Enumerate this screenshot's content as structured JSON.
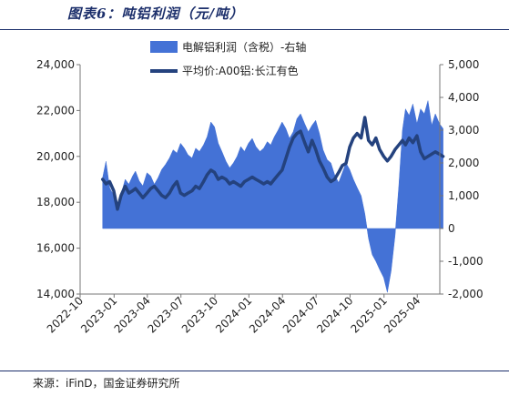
{
  "title": "图表6：吨铝利润（元/吨）",
  "source": "来源：iFinD，国金证券研究所",
  "colors": {
    "area": "#4472d6",
    "line": "#24427e",
    "title": "#1c2f6b"
  },
  "chart_data": {
    "type": "area",
    "legend": {
      "position": "top-center",
      "entries": [
        {
          "key": "profit",
          "label": "电解铝利润（含税）-右轴",
          "style": "area"
        },
        {
          "key": "price",
          "label": "平均价:A00铝:长江有色",
          "style": "line"
        }
      ]
    },
    "x_ticks": [
      "2022-10",
      "2023-01",
      "2023-04",
      "2023-07",
      "2023-10",
      "2024-01",
      "2024-04",
      "2024-07",
      "2024-10",
      "2025-01",
      "2025-04"
    ],
    "x_range": [
      "2022-10",
      "2025-06"
    ],
    "left_axis": {
      "min": 14000,
      "max": 24000,
      "ticks": [
        "14,000",
        "16,000",
        "18,000",
        "20,000",
        "22,000",
        "24,000"
      ]
    },
    "right_axis": {
      "min": -2000,
      "max": 5000,
      "ticks": [
        "-2,000",
        "-1,000",
        "0",
        "1,000",
        "2,000",
        "3,000",
        "4,000",
        "5,000"
      ]
    },
    "grid": false,
    "series": [
      {
        "key": "profit",
        "axis": "right",
        "type": "area",
        "points": [
          [
            "2022-12-01",
            1550
          ],
          [
            "2022-12-10",
            2050
          ],
          [
            "2022-12-20",
            1250
          ],
          [
            "2022-12-31",
            1000
          ],
          [
            "2023-01-10",
            650
          ],
          [
            "2023-01-20",
            1050
          ],
          [
            "2023-01-31",
            1500
          ],
          [
            "2023-02-10",
            1350
          ],
          [
            "2023-02-20",
            1600
          ],
          [
            "2023-02-28",
            1750
          ],
          [
            "2023-03-10",
            1450
          ],
          [
            "2023-03-20",
            1300
          ],
          [
            "2023-03-31",
            1700
          ],
          [
            "2023-04-10",
            1600
          ],
          [
            "2023-04-20",
            1350
          ],
          [
            "2023-04-30",
            1550
          ],
          [
            "2023-05-10",
            1800
          ],
          [
            "2023-05-20",
            1950
          ],
          [
            "2023-05-31",
            2150
          ],
          [
            "2023-06-10",
            2400
          ],
          [
            "2023-06-20",
            2300
          ],
          [
            "2023-06-30",
            2600
          ],
          [
            "2023-07-10",
            2450
          ],
          [
            "2023-07-20",
            2250
          ],
          [
            "2023-07-31",
            2150
          ],
          [
            "2023-08-10",
            2450
          ],
          [
            "2023-08-20",
            2350
          ],
          [
            "2023-08-31",
            2550
          ],
          [
            "2023-09-10",
            2800
          ],
          [
            "2023-09-20",
            3250
          ],
          [
            "2023-09-30",
            3100
          ],
          [
            "2023-10-10",
            2600
          ],
          [
            "2023-10-20",
            2350
          ],
          [
            "2023-10-31",
            2050
          ],
          [
            "2023-11-10",
            1850
          ],
          [
            "2023-11-20",
            2000
          ],
          [
            "2023-11-30",
            2200
          ],
          [
            "2023-12-10",
            2500
          ],
          [
            "2023-12-20",
            2350
          ],
          [
            "2023-12-31",
            2600
          ],
          [
            "2024-01-10",
            2750
          ],
          [
            "2024-01-20",
            2500
          ],
          [
            "2024-01-31",
            2350
          ],
          [
            "2024-02-10",
            2450
          ],
          [
            "2024-02-20",
            2650
          ],
          [
            "2024-02-29",
            2550
          ],
          [
            "2024-03-10",
            2800
          ],
          [
            "2024-03-20",
            3000
          ],
          [
            "2024-03-31",
            3250
          ],
          [
            "2024-04-10",
            3050
          ],
          [
            "2024-04-20",
            2750
          ],
          [
            "2024-04-30",
            2950
          ],
          [
            "2024-05-10",
            3350
          ],
          [
            "2024-05-20",
            3500
          ],
          [
            "2024-05-31",
            3200
          ],
          [
            "2024-06-10",
            2950
          ],
          [
            "2024-06-20",
            3150
          ],
          [
            "2024-06-30",
            3300
          ],
          [
            "2024-07-10",
            2900
          ],
          [
            "2024-07-20",
            2400
          ],
          [
            "2024-07-31",
            2100
          ],
          [
            "2024-08-10",
            2000
          ],
          [
            "2024-08-20",
            1650
          ],
          [
            "2024-08-31",
            1400
          ],
          [
            "2024-09-10",
            1700
          ],
          [
            "2024-09-20",
            2000
          ],
          [
            "2024-09-30",
            1800
          ],
          [
            "2024-10-10",
            1500
          ],
          [
            "2024-10-20",
            1250
          ],
          [
            "2024-10-31",
            1000
          ],
          [
            "2024-11-10",
            450
          ],
          [
            "2024-11-20",
            -300
          ],
          [
            "2024-11-30",
            -800
          ],
          [
            "2024-12-10",
            -1000
          ],
          [
            "2024-12-20",
            -1250
          ],
          [
            "2024-12-31",
            -1500
          ],
          [
            "2025-01-10",
            -1950
          ],
          [
            "2025-01-20",
            -1300
          ],
          [
            "2025-01-31",
            -200
          ],
          [
            "2025-02-10",
            1300
          ],
          [
            "2025-02-20",
            3000
          ],
          [
            "2025-02-28",
            3650
          ],
          [
            "2025-03-10",
            3450
          ],
          [
            "2025-03-20",
            3800
          ],
          [
            "2025-03-31",
            3200
          ],
          [
            "2025-04-10",
            3650
          ],
          [
            "2025-04-20",
            3500
          ],
          [
            "2025-04-30",
            3900
          ],
          [
            "2025-05-10",
            3150
          ],
          [
            "2025-05-20",
            3500
          ],
          [
            "2025-05-31",
            3200
          ],
          [
            "2025-06-10",
            3050
          ]
        ]
      },
      {
        "key": "price",
        "axis": "left",
        "type": "line",
        "points": [
          [
            "2022-12-01",
            19000
          ],
          [
            "2022-12-10",
            18800
          ],
          [
            "2022-12-20",
            18900
          ],
          [
            "2022-12-31",
            18500
          ],
          [
            "2023-01-10",
            17700
          ],
          [
            "2023-01-20",
            18300
          ],
          [
            "2023-01-31",
            18700
          ],
          [
            "2023-02-10",
            18400
          ],
          [
            "2023-02-20",
            18500
          ],
          [
            "2023-02-28",
            18600
          ],
          [
            "2023-03-10",
            18400
          ],
          [
            "2023-03-20",
            18200
          ],
          [
            "2023-03-31",
            18400
          ],
          [
            "2023-04-10",
            18600
          ],
          [
            "2023-04-20",
            18700
          ],
          [
            "2023-04-30",
            18500
          ],
          [
            "2023-05-10",
            18300
          ],
          [
            "2023-05-20",
            18200
          ],
          [
            "2023-05-31",
            18400
          ],
          [
            "2023-06-10",
            18700
          ],
          [
            "2023-06-20",
            18900
          ],
          [
            "2023-06-30",
            18400
          ],
          [
            "2023-07-10",
            18300
          ],
          [
            "2023-07-20",
            18400
          ],
          [
            "2023-07-31",
            18500
          ],
          [
            "2023-08-10",
            18700
          ],
          [
            "2023-08-20",
            18600
          ],
          [
            "2023-08-31",
            18900
          ],
          [
            "2023-09-10",
            19200
          ],
          [
            "2023-09-20",
            19400
          ],
          [
            "2023-09-30",
            19300
          ],
          [
            "2023-10-10",
            19000
          ],
          [
            "2023-10-20",
            19100
          ],
          [
            "2023-10-31",
            19000
          ],
          [
            "2023-11-10",
            18800
          ],
          [
            "2023-11-20",
            18900
          ],
          [
            "2023-11-30",
            18800
          ],
          [
            "2023-12-10",
            18700
          ],
          [
            "2023-12-20",
            18900
          ],
          [
            "2023-12-31",
            19000
          ],
          [
            "2024-01-10",
            19100
          ],
          [
            "2024-01-20",
            19000
          ],
          [
            "2024-01-31",
            18900
          ],
          [
            "2024-02-10",
            18800
          ],
          [
            "2024-02-20",
            18900
          ],
          [
            "2024-02-29",
            18800
          ],
          [
            "2024-03-10",
            19000
          ],
          [
            "2024-03-20",
            19200
          ],
          [
            "2024-03-31",
            19400
          ],
          [
            "2024-04-10",
            19900
          ],
          [
            "2024-04-20",
            20400
          ],
          [
            "2024-04-30",
            20800
          ],
          [
            "2024-05-10",
            21000
          ],
          [
            "2024-05-20",
            21100
          ],
          [
            "2024-05-31",
            20600
          ],
          [
            "2024-06-10",
            20200
          ],
          [
            "2024-06-20",
            20700
          ],
          [
            "2024-06-30",
            20300
          ],
          [
            "2024-07-10",
            19800
          ],
          [
            "2024-07-20",
            19500
          ],
          [
            "2024-07-31",
            19100
          ],
          [
            "2024-08-10",
            18900
          ],
          [
            "2024-08-20",
            19000
          ],
          [
            "2024-08-31",
            19300
          ],
          [
            "2024-09-10",
            19600
          ],
          [
            "2024-09-20",
            19700
          ],
          [
            "2024-09-30",
            20400
          ],
          [
            "2024-10-10",
            20800
          ],
          [
            "2024-10-20",
            21000
          ],
          [
            "2024-10-31",
            20800
          ],
          [
            "2024-11-10",
            21700
          ],
          [
            "2024-11-20",
            20700
          ],
          [
            "2024-11-30",
            20500
          ],
          [
            "2024-12-10",
            20800
          ],
          [
            "2024-12-20",
            20300
          ],
          [
            "2024-12-31",
            20000
          ],
          [
            "2025-01-10",
            19800
          ],
          [
            "2025-01-20",
            20000
          ],
          [
            "2025-01-31",
            20300
          ],
          [
            "2025-02-10",
            20500
          ],
          [
            "2025-02-20",
            20700
          ],
          [
            "2025-02-28",
            20500
          ],
          [
            "2025-03-10",
            20800
          ],
          [
            "2025-03-20",
            20600
          ],
          [
            "2025-03-31",
            20900
          ],
          [
            "2025-04-10",
            20200
          ],
          [
            "2025-04-20",
            19900
          ],
          [
            "2025-04-30",
            20000
          ],
          [
            "2025-05-10",
            20100
          ],
          [
            "2025-05-20",
            20200
          ],
          [
            "2025-05-31",
            20100
          ],
          [
            "2025-06-10",
            20000
          ]
        ]
      }
    ]
  }
}
